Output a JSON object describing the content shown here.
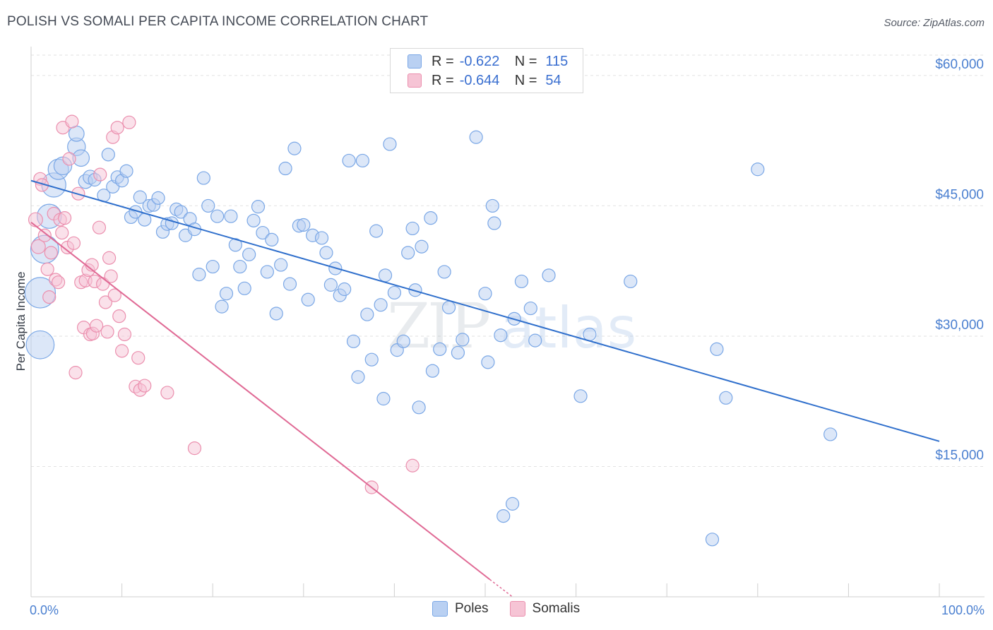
{
  "header": {
    "title": "POLISH VS SOMALI PER CAPITA INCOME CORRELATION CHART",
    "source": "Source: ZipAtlas.com"
  },
  "watermark": {
    "zip": "ZIP",
    "atlas": "atlas"
  },
  "legend": {
    "r_label": "R = ",
    "n_label": "N = ",
    "items": [
      {
        "name": "Poles",
        "r": "-0.622",
        "n": "115",
        "color": "#7aa7e6",
        "fill": "#b9d0f2"
      },
      {
        "name": "Somalis",
        "r": "-0.644",
        "n": "54",
        "color": "#eb8fae",
        "fill": "#f6c4d5"
      }
    ]
  },
  "chart_data": {
    "type": "scatter",
    "ylabel": "Per Capita Income",
    "x_tick_labels": [
      "0.0%",
      "100.0%"
    ],
    "xlim": [
      0,
      100
    ],
    "ylim": [
      0,
      63000
    ],
    "y_ticks": [
      {
        "value": 15000,
        "label": "$15,000"
      },
      {
        "value": 30000,
        "label": "$30,000"
      },
      {
        "value": 45000,
        "label": "$45,000"
      },
      {
        "value": 60000,
        "label": "$60,000"
      }
    ],
    "grid": true,
    "series": [
      {
        "name": "Poles",
        "color": "#7aa7e6",
        "fill": "#b9d0f2",
        "trend_color": "#2f6fcc",
        "trend": {
          "x": [
            0,
            100
          ],
          "y": [
            47900,
            17900
          ]
        },
        "points": [
          [
            1,
            29000,
            2.2
          ],
          [
            1,
            35000,
            2.4
          ],
          [
            1.5,
            40000,
            2.2
          ],
          [
            2,
            43800,
            1.9
          ],
          [
            2.5,
            47400,
            1.9
          ],
          [
            3,
            49200,
            1.6
          ],
          [
            3.5,
            49600,
            1.4
          ],
          [
            5,
            51800,
            1.4
          ],
          [
            5,
            53300,
            1.2
          ],
          [
            5.5,
            50500,
            1.3
          ],
          [
            6,
            47800,
            1.1
          ],
          [
            6.5,
            48300,
            1.1
          ],
          [
            7,
            48000,
            1
          ],
          [
            8,
            46200,
            1
          ],
          [
            8.5,
            50900,
            1
          ],
          [
            9,
            47200,
            1
          ],
          [
            9.5,
            48300,
            1
          ],
          [
            10,
            47900,
            1
          ],
          [
            10.5,
            49000,
            1
          ],
          [
            11,
            43700,
            1
          ],
          [
            11.5,
            44300,
            1
          ],
          [
            12,
            46000,
            1
          ],
          [
            12.5,
            43400,
            1
          ],
          [
            13,
            45000,
            1
          ],
          [
            13.5,
            45100,
            1
          ],
          [
            14,
            45900,
            1
          ],
          [
            14.5,
            42000,
            1
          ],
          [
            15,
            42900,
            1
          ],
          [
            15.5,
            43000,
            1
          ],
          [
            16,
            44600,
            1
          ],
          [
            16.5,
            44300,
            1
          ],
          [
            17,
            41600,
            1
          ],
          [
            17.5,
            43500,
            1
          ],
          [
            18,
            42300,
            1
          ],
          [
            18.5,
            37100,
            1
          ],
          [
            19,
            48200,
            1
          ],
          [
            19.5,
            45000,
            1
          ],
          [
            20,
            38000,
            1
          ],
          [
            20.5,
            43800,
            1
          ],
          [
            21,
            33400,
            1
          ],
          [
            21.5,
            34900,
            1
          ],
          [
            22,
            43800,
            1
          ],
          [
            22.5,
            40500,
            1
          ],
          [
            23,
            38000,
            1
          ],
          [
            23.5,
            35500,
            1
          ],
          [
            24,
            39400,
            1
          ],
          [
            24.5,
            43300,
            1
          ],
          [
            25,
            44900,
            1
          ],
          [
            25.5,
            41900,
            1
          ],
          [
            26,
            37400,
            1
          ],
          [
            26.5,
            41100,
            1
          ],
          [
            27,
            32600,
            1
          ],
          [
            27.5,
            38200,
            1
          ],
          [
            28,
            49300,
            1
          ],
          [
            28.5,
            36000,
            1
          ],
          [
            29,
            51600,
            1
          ],
          [
            29.5,
            42700,
            1
          ],
          [
            30,
            42800,
            1
          ],
          [
            30.5,
            34200,
            1
          ],
          [
            31,
            41600,
            1
          ],
          [
            32,
            41300,
            1
          ],
          [
            32.5,
            39600,
            1
          ],
          [
            33,
            35900,
            1
          ],
          [
            33.5,
            37800,
            1
          ],
          [
            34,
            34700,
            1
          ],
          [
            34.5,
            35400,
            1
          ],
          [
            35,
            50200,
            1
          ],
          [
            35.5,
            29400,
            1
          ],
          [
            36,
            25300,
            1
          ],
          [
            36.5,
            50200,
            1
          ],
          [
            37,
            32500,
            1
          ],
          [
            37.5,
            27300,
            1
          ],
          [
            38,
            42100,
            1
          ],
          [
            38.5,
            33600,
            1
          ],
          [
            38.8,
            22800,
            1
          ],
          [
            39,
            37000,
            1
          ],
          [
            39.5,
            52100,
            1
          ],
          [
            40,
            35000,
            1
          ],
          [
            40.3,
            28400,
            1
          ],
          [
            41,
            29400,
            1
          ],
          [
            41.5,
            39600,
            1
          ],
          [
            42,
            42400,
            1
          ],
          [
            42.3,
            35300,
            1
          ],
          [
            42.7,
            21800,
            1
          ],
          [
            43,
            40300,
            1
          ],
          [
            44,
            43600,
            1
          ],
          [
            44.2,
            26000,
            1
          ],
          [
            45,
            28500,
            1
          ],
          [
            45.5,
            37400,
            1
          ],
          [
            46,
            33300,
            1
          ],
          [
            47,
            28100,
            1
          ],
          [
            47.5,
            29600,
            1
          ],
          [
            49,
            52900,
            1
          ],
          [
            50,
            34900,
            1
          ],
          [
            50.3,
            27000,
            1
          ],
          [
            50.8,
            45000,
            1
          ],
          [
            51,
            43000,
            1
          ],
          [
            51.7,
            30100,
            1
          ],
          [
            52,
            9300,
            1
          ],
          [
            53,
            10700,
            1
          ],
          [
            53.2,
            32000,
            1
          ],
          [
            54,
            36300,
            1
          ],
          [
            55,
            33200,
            1
          ],
          [
            55.5,
            29500,
            1
          ],
          [
            57,
            37000,
            1
          ],
          [
            60.5,
            23100,
            1
          ],
          [
            61.5,
            30200,
            1
          ],
          [
            66,
            36300,
            1
          ],
          [
            75,
            6600,
            1
          ],
          [
            75.5,
            28500,
            1
          ],
          [
            76.5,
            22900,
            1
          ],
          [
            80,
            49200,
            1
          ],
          [
            88,
            18700,
            1
          ]
        ]
      },
      {
        "name": "Somalis",
        "color": "#eb8fae",
        "fill": "#f6c4d5",
        "trend_color": "#e06a95",
        "trend": {
          "x": [
            0,
            50.5
          ],
          "y": [
            43100,
            2000
          ]
        },
        "trend_dash": {
          "x": [
            50.5,
            53
          ],
          "y": [
            2000,
            0
          ]
        },
        "points": [
          [
            0.5,
            43400,
            1.1
          ],
          [
            0.8,
            40300,
            1.1
          ],
          [
            1,
            48100,
            1
          ],
          [
            1.2,
            47400,
            1
          ],
          [
            1.5,
            41600,
            1
          ],
          [
            1.8,
            37700,
            1
          ],
          [
            2,
            34500,
            1
          ],
          [
            2.2,
            39600,
            1
          ],
          [
            2.5,
            44100,
            1
          ],
          [
            2.7,
            36500,
            1
          ],
          [
            3,
            36200,
            1
          ],
          [
            3.2,
            43400,
            1
          ],
          [
            3.4,
            41900,
            1
          ],
          [
            3.5,
            54000,
            1
          ],
          [
            3.7,
            43600,
            1
          ],
          [
            4,
            40200,
            1
          ],
          [
            4.2,
            50400,
            1
          ],
          [
            4.5,
            54700,
            1
          ],
          [
            4.7,
            40700,
            1
          ],
          [
            4.9,
            25800,
            1
          ],
          [
            5.2,
            46400,
            1
          ],
          [
            5.5,
            36200,
            1
          ],
          [
            5.8,
            31000,
            1
          ],
          [
            6,
            36400,
            1
          ],
          [
            6.3,
            37600,
            1
          ],
          [
            6.5,
            30200,
            1
          ],
          [
            6.7,
            38200,
            1
          ],
          [
            6.8,
            30300,
            1
          ],
          [
            7,
            36300,
            1
          ],
          [
            7.2,
            31200,
            1
          ],
          [
            7.5,
            42500,
            1
          ],
          [
            7.6,
            48600,
            1
          ],
          [
            7.9,
            36000,
            1
          ],
          [
            8.2,
            33900,
            1
          ],
          [
            8.4,
            30500,
            1
          ],
          [
            8.6,
            39000,
            1
          ],
          [
            8.8,
            36900,
            1
          ],
          [
            9,
            52900,
            1
          ],
          [
            9.2,
            34700,
            1
          ],
          [
            9.5,
            54000,
            1
          ],
          [
            9.7,
            32300,
            1
          ],
          [
            10,
            28300,
            1
          ],
          [
            10.3,
            30200,
            1
          ],
          [
            10.8,
            54600,
            1
          ],
          [
            11.5,
            24200,
            1
          ],
          [
            11.8,
            27500,
            1
          ],
          [
            12,
            23800,
            1
          ],
          [
            12.5,
            24300,
            1
          ],
          [
            15,
            23500,
            1
          ],
          [
            18,
            17100,
            1
          ],
          [
            37.5,
            12600,
            1
          ],
          [
            42,
            15100,
            1
          ]
        ]
      }
    ]
  }
}
